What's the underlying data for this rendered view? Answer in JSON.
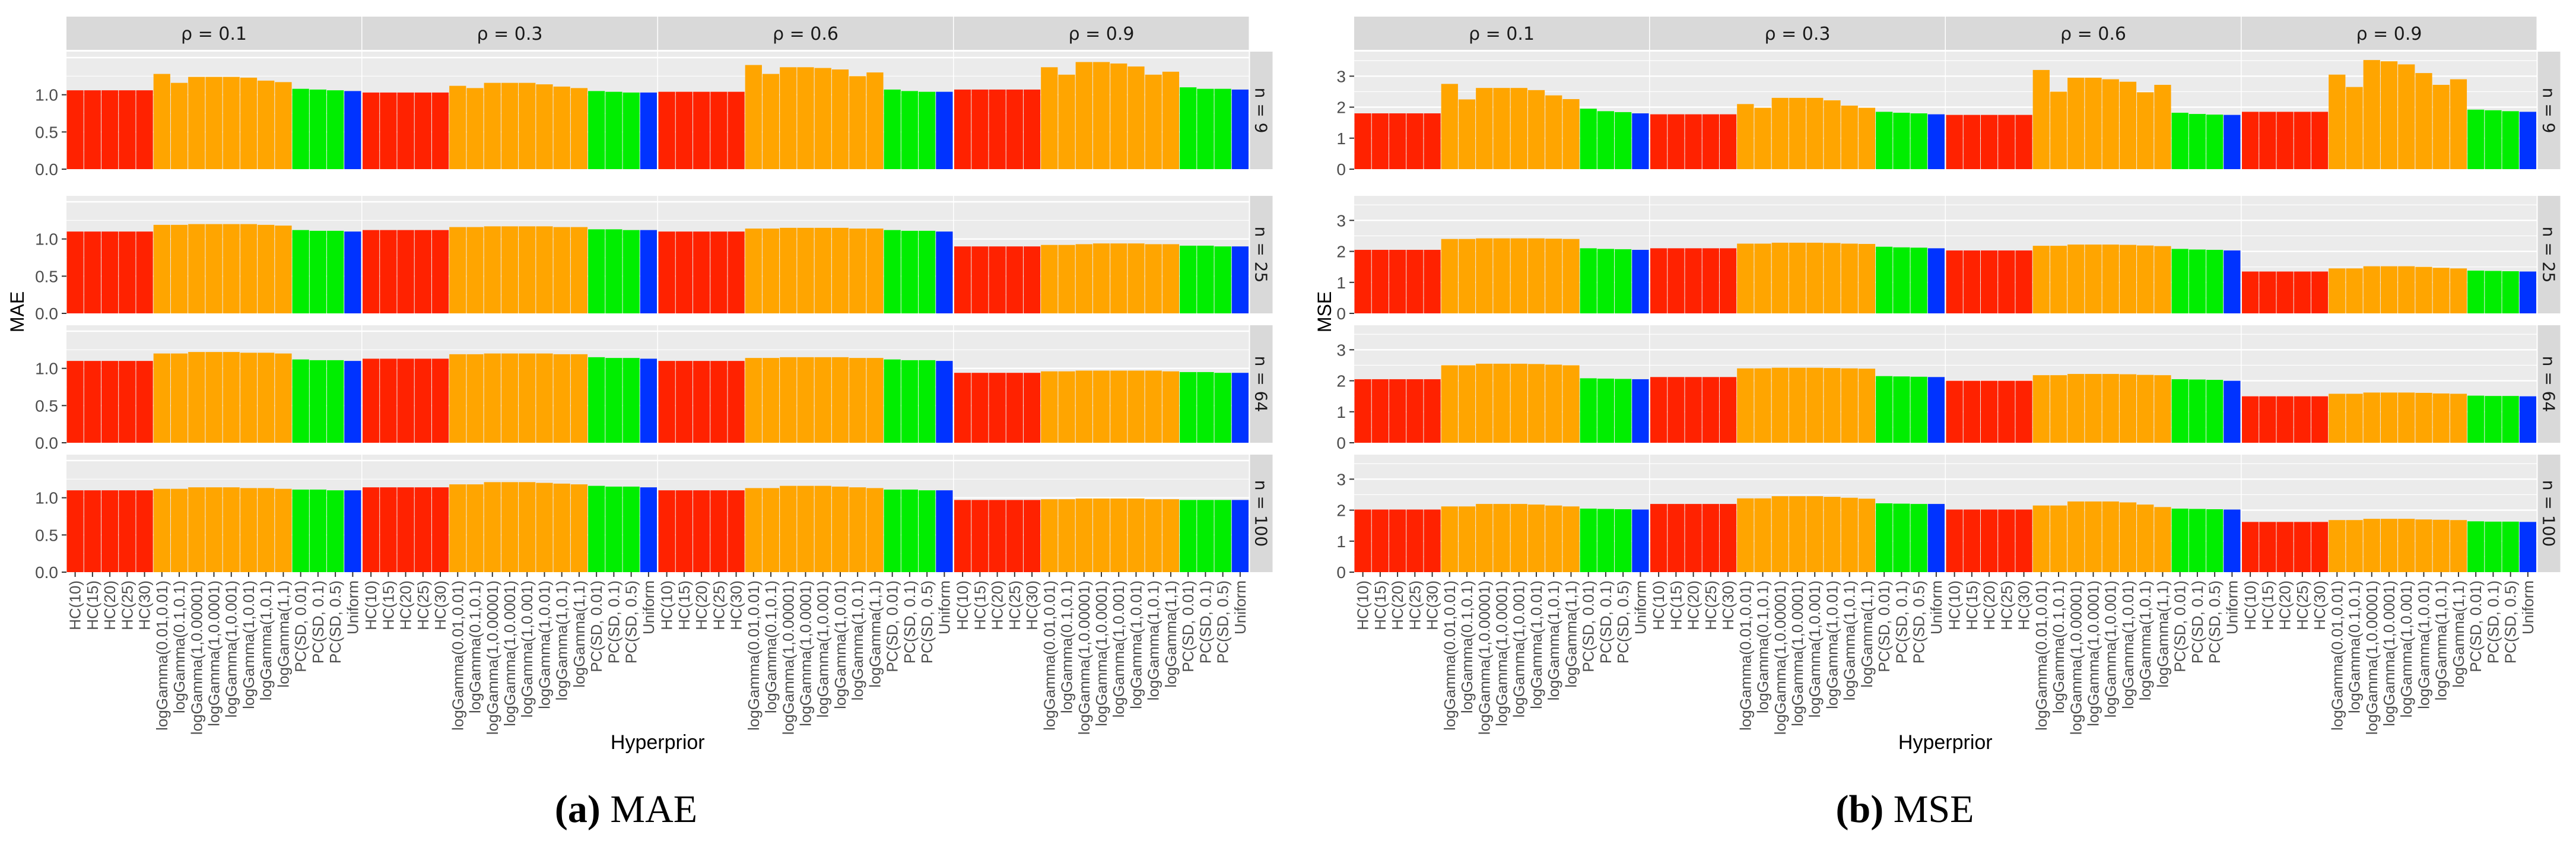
{
  "figure": {
    "hyperpriors": [
      "HC(10)",
      "HC(15)",
      "HC(20)",
      "HC(25)",
      "HC(30)",
      "logGamma(0.01,0.01)",
      "logGamma(0.1,0.1)",
      "logGamma(1,0.00001)",
      "logGamma(1,0.0001)",
      "logGamma(1,0.001)",
      "logGamma(1,0.01)",
      "logGamma(1,0.1)",
      "logGamma(1,1)",
      "PC(SD, 0.01)",
      "PC(SD, 0.1)",
      "PC(SD, 0.5)",
      "Uniform"
    ],
    "bar_groups": [
      "HC",
      "HC",
      "HC",
      "HC",
      "HC",
      "logGamma",
      "logGamma",
      "logGamma",
      "logGamma",
      "logGamma",
      "logGamma",
      "logGamma",
      "logGamma",
      "PC",
      "PC",
      "PC",
      "Uniform"
    ],
    "group_colors": {
      "HC": "#ff2200",
      "logGamma": "#ffa500",
      "PC": "#00ee00",
      "Uniform": "#0033ff"
    },
    "strip_color": "#d9d9d9",
    "panel_background": "#ebebeb",
    "gridline_color": "#ffffff",
    "rho_labels": [
      "ρ = 0.1",
      "ρ = 0.3",
      "ρ = 0.6",
      "ρ = 0.9"
    ],
    "n_labels": [
      "n = 9",
      "n = 25",
      "n = 64",
      "n = 100"
    ],
    "xlabel": "Hyperprior"
  },
  "chart_data": [
    {
      "type": "bar",
      "caption_tag": "(a)",
      "caption_text": "MAE",
      "ylabel": "MAE",
      "xlabel": "Hyperprior",
      "ylim": [
        0,
        1.5
      ],
      "yticks": [
        0.0,
        0.5,
        1.0
      ],
      "facet_cols": [
        "ρ = 0.1",
        "ρ = 0.3",
        "ρ = 0.6",
        "ρ = 0.9"
      ],
      "facet_rows": [
        "n = 9",
        "n = 25",
        "n = 64",
        "n = 100"
      ],
      "values": [
        [
          [
            1.06,
            1.06,
            1.06,
            1.06,
            1.06,
            1.28,
            1.16,
            1.24,
            1.24,
            1.24,
            1.23,
            1.19,
            1.17,
            1.08,
            1.07,
            1.06,
            1.05
          ],
          [
            1.03,
            1.03,
            1.03,
            1.03,
            1.03,
            1.12,
            1.09,
            1.16,
            1.16,
            1.16,
            1.14,
            1.11,
            1.09,
            1.05,
            1.04,
            1.03,
            1.03
          ],
          [
            1.04,
            1.04,
            1.04,
            1.04,
            1.04,
            1.4,
            1.28,
            1.37,
            1.37,
            1.36,
            1.34,
            1.25,
            1.3,
            1.07,
            1.05,
            1.04,
            1.04
          ],
          [
            1.07,
            1.07,
            1.07,
            1.07,
            1.07,
            1.37,
            1.27,
            1.44,
            1.44,
            1.42,
            1.38,
            1.27,
            1.31,
            1.1,
            1.08,
            1.08,
            1.07
          ]
        ],
        [
          [
            1.1,
            1.1,
            1.1,
            1.1,
            1.1,
            1.19,
            1.19,
            1.2,
            1.2,
            1.2,
            1.2,
            1.19,
            1.18,
            1.12,
            1.11,
            1.11,
            1.1
          ],
          [
            1.12,
            1.12,
            1.12,
            1.12,
            1.12,
            1.16,
            1.16,
            1.17,
            1.17,
            1.17,
            1.17,
            1.16,
            1.16,
            1.13,
            1.13,
            1.12,
            1.12
          ],
          [
            1.1,
            1.1,
            1.1,
            1.1,
            1.1,
            1.14,
            1.14,
            1.15,
            1.15,
            1.15,
            1.15,
            1.14,
            1.14,
            1.12,
            1.11,
            1.11,
            1.1
          ],
          [
            0.9,
            0.9,
            0.9,
            0.9,
            0.9,
            0.92,
            0.92,
            0.93,
            0.94,
            0.94,
            0.94,
            0.93,
            0.93,
            0.91,
            0.91,
            0.9,
            0.9
          ]
        ],
        [
          [
            1.1,
            1.1,
            1.1,
            1.1,
            1.1,
            1.2,
            1.2,
            1.22,
            1.22,
            1.22,
            1.21,
            1.21,
            1.2,
            1.12,
            1.11,
            1.11,
            1.1
          ],
          [
            1.13,
            1.13,
            1.13,
            1.13,
            1.13,
            1.19,
            1.19,
            1.2,
            1.2,
            1.2,
            1.2,
            1.19,
            1.19,
            1.15,
            1.14,
            1.14,
            1.13
          ],
          [
            1.1,
            1.1,
            1.1,
            1.1,
            1.1,
            1.14,
            1.14,
            1.15,
            1.15,
            1.15,
            1.15,
            1.14,
            1.14,
            1.12,
            1.11,
            1.11,
            1.1
          ],
          [
            0.94,
            0.94,
            0.94,
            0.94,
            0.94,
            0.96,
            0.96,
            0.97,
            0.97,
            0.97,
            0.97,
            0.97,
            0.96,
            0.95,
            0.95,
            0.94,
            0.94
          ]
        ],
        [
          [
            1.1,
            1.1,
            1.1,
            1.1,
            1.1,
            1.12,
            1.12,
            1.14,
            1.14,
            1.14,
            1.13,
            1.13,
            1.12,
            1.11,
            1.11,
            1.1,
            1.1
          ],
          [
            1.14,
            1.14,
            1.14,
            1.14,
            1.14,
            1.18,
            1.18,
            1.21,
            1.21,
            1.21,
            1.2,
            1.19,
            1.18,
            1.16,
            1.15,
            1.15,
            1.14
          ],
          [
            1.1,
            1.1,
            1.1,
            1.1,
            1.1,
            1.13,
            1.13,
            1.16,
            1.16,
            1.16,
            1.15,
            1.14,
            1.13,
            1.11,
            1.11,
            1.1,
            1.1
          ],
          [
            0.97,
            0.97,
            0.97,
            0.97,
            0.97,
            0.98,
            0.98,
            0.99,
            0.99,
            0.99,
            0.99,
            0.98,
            0.98,
            0.97,
            0.97,
            0.97,
            0.97
          ]
        ]
      ]
    },
    {
      "type": "bar",
      "caption_tag": "(b)",
      "caption_text": "MSE",
      "ylabel": "MSE",
      "xlabel": "Hyperprior",
      "ylim": [
        0,
        3.6
      ],
      "yticks": [
        0,
        1,
        2,
        3
      ],
      "facet_cols": [
        "ρ = 0.1",
        "ρ = 0.3",
        "ρ = 0.6",
        "ρ = 0.9"
      ],
      "facet_rows": [
        "n = 9",
        "n = 25",
        "n = 64",
        "n = 100"
      ],
      "values": [
        [
          [
            1.8,
            1.8,
            1.8,
            1.8,
            1.8,
            2.75,
            2.25,
            2.62,
            2.62,
            2.62,
            2.55,
            2.38,
            2.26,
            1.95,
            1.87,
            1.84,
            1.8
          ],
          [
            1.77,
            1.77,
            1.77,
            1.77,
            1.77,
            2.1,
            1.98,
            2.3,
            2.3,
            2.3,
            2.22,
            2.05,
            1.98,
            1.85,
            1.82,
            1.8,
            1.77
          ],
          [
            1.75,
            1.75,
            1.75,
            1.75,
            1.75,
            3.2,
            2.5,
            2.95,
            2.95,
            2.9,
            2.82,
            2.48,
            2.72,
            1.82,
            1.78,
            1.76,
            1.75
          ],
          [
            1.85,
            1.85,
            1.85,
            1.85,
            1.85,
            3.05,
            2.65,
            3.52,
            3.48,
            3.38,
            3.1,
            2.72,
            2.9,
            1.92,
            1.9,
            1.87,
            1.85
          ]
        ],
        [
          [
            2.05,
            2.05,
            2.05,
            2.05,
            2.05,
            2.4,
            2.4,
            2.42,
            2.42,
            2.42,
            2.42,
            2.41,
            2.4,
            2.1,
            2.08,
            2.07,
            2.05
          ],
          [
            2.1,
            2.1,
            2.1,
            2.1,
            2.1,
            2.25,
            2.25,
            2.28,
            2.28,
            2.28,
            2.27,
            2.25,
            2.24,
            2.15,
            2.13,
            2.12,
            2.1
          ],
          [
            2.03,
            2.03,
            2.03,
            2.03,
            2.03,
            2.18,
            2.18,
            2.22,
            2.22,
            2.22,
            2.21,
            2.19,
            2.17,
            2.08,
            2.06,
            2.05,
            2.03
          ],
          [
            1.35,
            1.35,
            1.35,
            1.35,
            1.35,
            1.45,
            1.45,
            1.52,
            1.52,
            1.52,
            1.5,
            1.47,
            1.45,
            1.38,
            1.37,
            1.36,
            1.35
          ]
        ],
        [
          [
            2.05,
            2.05,
            2.05,
            2.05,
            2.05,
            2.5,
            2.5,
            2.55,
            2.55,
            2.55,
            2.54,
            2.52,
            2.5,
            2.08,
            2.07,
            2.06,
            2.05
          ],
          [
            2.12,
            2.12,
            2.12,
            2.12,
            2.12,
            2.4,
            2.4,
            2.42,
            2.42,
            2.42,
            2.41,
            2.4,
            2.39,
            2.15,
            2.14,
            2.13,
            2.12
          ],
          [
            2.0,
            2.0,
            2.0,
            2.0,
            2.0,
            2.18,
            2.18,
            2.22,
            2.22,
            2.22,
            2.21,
            2.19,
            2.18,
            2.05,
            2.04,
            2.03,
            2.0
          ],
          [
            1.5,
            1.5,
            1.5,
            1.5,
            1.5,
            1.58,
            1.58,
            1.62,
            1.62,
            1.62,
            1.61,
            1.59,
            1.58,
            1.52,
            1.51,
            1.51,
            1.5
          ]
        ],
        [
          [
            2.02,
            2.02,
            2.02,
            2.02,
            2.02,
            2.12,
            2.12,
            2.2,
            2.2,
            2.2,
            2.18,
            2.15,
            2.12,
            2.05,
            2.04,
            2.03,
            2.02
          ],
          [
            2.2,
            2.2,
            2.2,
            2.2,
            2.2,
            2.38,
            2.38,
            2.45,
            2.45,
            2.45,
            2.43,
            2.4,
            2.37,
            2.22,
            2.21,
            2.2,
            2.2
          ],
          [
            2.02,
            2.02,
            2.02,
            2.02,
            2.02,
            2.15,
            2.15,
            2.28,
            2.28,
            2.28,
            2.25,
            2.18,
            2.1,
            2.05,
            2.04,
            2.03,
            2.02
          ],
          [
            1.62,
            1.62,
            1.62,
            1.62,
            1.62,
            1.68,
            1.68,
            1.72,
            1.72,
            1.72,
            1.7,
            1.69,
            1.68,
            1.64,
            1.63,
            1.63,
            1.62
          ]
        ]
      ]
    }
  ]
}
